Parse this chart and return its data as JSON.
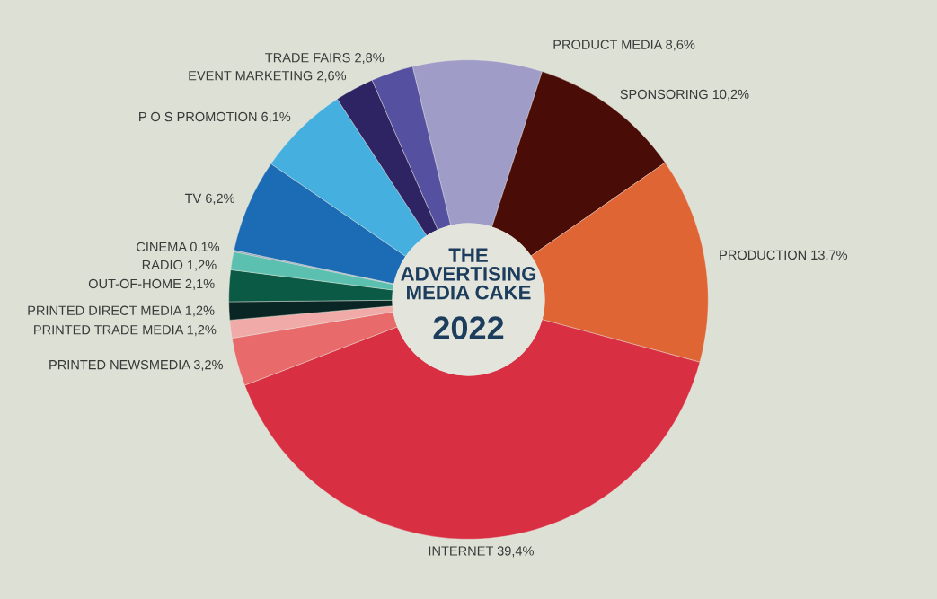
{
  "chart_data": {
    "type": "donut",
    "title": "THE ADVERTISING MEDIA CAKE",
    "subtitle": "2022",
    "categories": [
      "PRODUCT MEDIA",
      "SPONSORING",
      "PRODUCTION",
      "INTERNET",
      "PRINTED NEWSMEDIA",
      "PRINTED TRADE MEDIA",
      "PRINTED DIRECT MEDIA",
      "OUT-OF-HOME",
      "RADIO",
      "CINEMA",
      "TV",
      "P O S PROMOTION",
      "EVENT MARKETING",
      "TRADE FAIRS"
    ],
    "values": [
      8.6,
      10.2,
      13.7,
      39.4,
      3.2,
      1.2,
      1.2,
      2.1,
      1.2,
      0.1,
      6.2,
      6.1,
      2.6,
      2.8
    ],
    "value_labels": [
      "8,6%",
      "10,2%",
      "13,7%",
      "39,4%",
      "3,2%",
      "1,2%",
      "1,2%",
      "2,1%",
      "1,2%",
      "0,1%",
      "6,2%",
      "6,1%",
      "2,6%",
      "2,8%"
    ],
    "colors": [
      "#9f9cc8",
      "#4a0c06",
      "#e06535",
      "#d92f42",
      "#e86a6a",
      "#f0aaa8",
      "#0a2624",
      "#0b5a45",
      "#5cc0b0",
      "#8fa0b8",
      "#1b6bb5",
      "#45b0e0",
      "#2e2463",
      "#5551a0"
    ],
    "legend": false
  }
}
